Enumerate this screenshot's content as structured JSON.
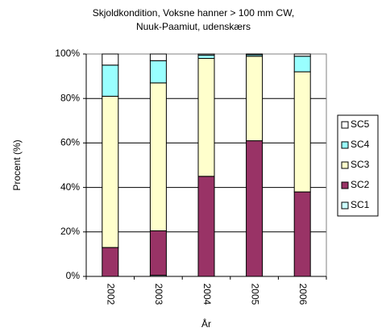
{
  "chart_data": {
    "type": "stacked_bar",
    "title": [
      "Skjoldkondition, Voksne hanner > 100 mm CW,",
      "Nuuk-Paamiut, udenskærs"
    ],
    "x_label": "År",
    "y_label": "Procent (%)",
    "categories": [
      "2002",
      "2003",
      "2004",
      "2005",
      "2006"
    ],
    "series": [
      {
        "name": "SC1",
        "color": "#ccffff",
        "values": [
          0,
          0.5,
          0,
          0,
          0
        ]
      },
      {
        "name": "SC2",
        "color": "#993366",
        "values": [
          13,
          20,
          45,
          61,
          38
        ]
      },
      {
        "name": "SC3",
        "color": "#ffffcc",
        "values": [
          68,
          66.5,
          53,
          38,
          54
        ]
      },
      {
        "name": "SC4",
        "color": "#99ffff",
        "values": [
          14,
          10,
          1.5,
          0.7,
          7
        ]
      },
      {
        "name": "SC5",
        "color": "#ffffff",
        "values": [
          5,
          3,
          0.5,
          0.3,
          1
        ]
      }
    ],
    "ylim": [
      0,
      100
    ],
    "yticks": [
      {
        "value": 0,
        "label": "0%"
      },
      {
        "value": 20,
        "label": "20%"
      },
      {
        "value": 40,
        "label": "40%"
      },
      {
        "value": 60,
        "label": "60%"
      },
      {
        "value": 80,
        "label": "80%"
      },
      {
        "value": 100,
        "label": "100%"
      }
    ],
    "grid": true,
    "legend": "right"
  }
}
